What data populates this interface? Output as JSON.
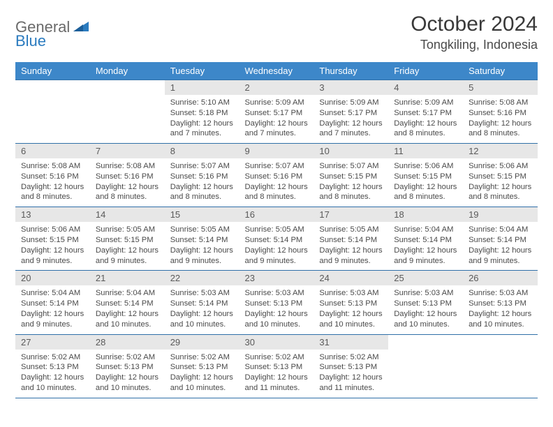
{
  "brand": {
    "word1": "General",
    "word2": "Blue"
  },
  "title": "October 2024",
  "location": "Tongkiling, Indonesia",
  "colors": {
    "header_bg": "#3d87c9",
    "header_text": "#ffffff",
    "daynum_bg": "#e7e7e7",
    "rule": "#2f6fa8",
    "text": "#4a4a4a",
    "logo_gray": "#6a6a6a",
    "logo_blue": "#2b7bbf"
  },
  "weekdays": [
    "Sunday",
    "Monday",
    "Tuesday",
    "Wednesday",
    "Thursday",
    "Friday",
    "Saturday"
  ],
  "weeks": [
    [
      null,
      null,
      {
        "n": "1",
        "sunrise": "Sunrise: 5:10 AM",
        "sunset": "Sunset: 5:18 PM",
        "day1": "Daylight: 12 hours",
        "day2": "and 7 minutes."
      },
      {
        "n": "2",
        "sunrise": "Sunrise: 5:09 AM",
        "sunset": "Sunset: 5:17 PM",
        "day1": "Daylight: 12 hours",
        "day2": "and 7 minutes."
      },
      {
        "n": "3",
        "sunrise": "Sunrise: 5:09 AM",
        "sunset": "Sunset: 5:17 PM",
        "day1": "Daylight: 12 hours",
        "day2": "and 7 minutes."
      },
      {
        "n": "4",
        "sunrise": "Sunrise: 5:09 AM",
        "sunset": "Sunset: 5:17 PM",
        "day1": "Daylight: 12 hours",
        "day2": "and 8 minutes."
      },
      {
        "n": "5",
        "sunrise": "Sunrise: 5:08 AM",
        "sunset": "Sunset: 5:16 PM",
        "day1": "Daylight: 12 hours",
        "day2": "and 8 minutes."
      }
    ],
    [
      {
        "n": "6",
        "sunrise": "Sunrise: 5:08 AM",
        "sunset": "Sunset: 5:16 PM",
        "day1": "Daylight: 12 hours",
        "day2": "and 8 minutes."
      },
      {
        "n": "7",
        "sunrise": "Sunrise: 5:08 AM",
        "sunset": "Sunset: 5:16 PM",
        "day1": "Daylight: 12 hours",
        "day2": "and 8 minutes."
      },
      {
        "n": "8",
        "sunrise": "Sunrise: 5:07 AM",
        "sunset": "Sunset: 5:16 PM",
        "day1": "Daylight: 12 hours",
        "day2": "and 8 minutes."
      },
      {
        "n": "9",
        "sunrise": "Sunrise: 5:07 AM",
        "sunset": "Sunset: 5:16 PM",
        "day1": "Daylight: 12 hours",
        "day2": "and 8 minutes."
      },
      {
        "n": "10",
        "sunrise": "Sunrise: 5:07 AM",
        "sunset": "Sunset: 5:15 PM",
        "day1": "Daylight: 12 hours",
        "day2": "and 8 minutes."
      },
      {
        "n": "11",
        "sunrise": "Sunrise: 5:06 AM",
        "sunset": "Sunset: 5:15 PM",
        "day1": "Daylight: 12 hours",
        "day2": "and 8 minutes."
      },
      {
        "n": "12",
        "sunrise": "Sunrise: 5:06 AM",
        "sunset": "Sunset: 5:15 PM",
        "day1": "Daylight: 12 hours",
        "day2": "and 8 minutes."
      }
    ],
    [
      {
        "n": "13",
        "sunrise": "Sunrise: 5:06 AM",
        "sunset": "Sunset: 5:15 PM",
        "day1": "Daylight: 12 hours",
        "day2": "and 9 minutes."
      },
      {
        "n": "14",
        "sunrise": "Sunrise: 5:05 AM",
        "sunset": "Sunset: 5:15 PM",
        "day1": "Daylight: 12 hours",
        "day2": "and 9 minutes."
      },
      {
        "n": "15",
        "sunrise": "Sunrise: 5:05 AM",
        "sunset": "Sunset: 5:14 PM",
        "day1": "Daylight: 12 hours",
        "day2": "and 9 minutes."
      },
      {
        "n": "16",
        "sunrise": "Sunrise: 5:05 AM",
        "sunset": "Sunset: 5:14 PM",
        "day1": "Daylight: 12 hours",
        "day2": "and 9 minutes."
      },
      {
        "n": "17",
        "sunrise": "Sunrise: 5:05 AM",
        "sunset": "Sunset: 5:14 PM",
        "day1": "Daylight: 12 hours",
        "day2": "and 9 minutes."
      },
      {
        "n": "18",
        "sunrise": "Sunrise: 5:04 AM",
        "sunset": "Sunset: 5:14 PM",
        "day1": "Daylight: 12 hours",
        "day2": "and 9 minutes."
      },
      {
        "n": "19",
        "sunrise": "Sunrise: 5:04 AM",
        "sunset": "Sunset: 5:14 PM",
        "day1": "Daylight: 12 hours",
        "day2": "and 9 minutes."
      }
    ],
    [
      {
        "n": "20",
        "sunrise": "Sunrise: 5:04 AM",
        "sunset": "Sunset: 5:14 PM",
        "day1": "Daylight: 12 hours",
        "day2": "and 9 minutes."
      },
      {
        "n": "21",
        "sunrise": "Sunrise: 5:04 AM",
        "sunset": "Sunset: 5:14 PM",
        "day1": "Daylight: 12 hours",
        "day2": "and 10 minutes."
      },
      {
        "n": "22",
        "sunrise": "Sunrise: 5:03 AM",
        "sunset": "Sunset: 5:14 PM",
        "day1": "Daylight: 12 hours",
        "day2": "and 10 minutes."
      },
      {
        "n": "23",
        "sunrise": "Sunrise: 5:03 AM",
        "sunset": "Sunset: 5:13 PM",
        "day1": "Daylight: 12 hours",
        "day2": "and 10 minutes."
      },
      {
        "n": "24",
        "sunrise": "Sunrise: 5:03 AM",
        "sunset": "Sunset: 5:13 PM",
        "day1": "Daylight: 12 hours",
        "day2": "and 10 minutes."
      },
      {
        "n": "25",
        "sunrise": "Sunrise: 5:03 AM",
        "sunset": "Sunset: 5:13 PM",
        "day1": "Daylight: 12 hours",
        "day2": "and 10 minutes."
      },
      {
        "n": "26",
        "sunrise": "Sunrise: 5:03 AM",
        "sunset": "Sunset: 5:13 PM",
        "day1": "Daylight: 12 hours",
        "day2": "and 10 minutes."
      }
    ],
    [
      {
        "n": "27",
        "sunrise": "Sunrise: 5:02 AM",
        "sunset": "Sunset: 5:13 PM",
        "day1": "Daylight: 12 hours",
        "day2": "and 10 minutes."
      },
      {
        "n": "28",
        "sunrise": "Sunrise: 5:02 AM",
        "sunset": "Sunset: 5:13 PM",
        "day1": "Daylight: 12 hours",
        "day2": "and 10 minutes."
      },
      {
        "n": "29",
        "sunrise": "Sunrise: 5:02 AM",
        "sunset": "Sunset: 5:13 PM",
        "day1": "Daylight: 12 hours",
        "day2": "and 10 minutes."
      },
      {
        "n": "30",
        "sunrise": "Sunrise: 5:02 AM",
        "sunset": "Sunset: 5:13 PM",
        "day1": "Daylight: 12 hours",
        "day2": "and 11 minutes."
      },
      {
        "n": "31",
        "sunrise": "Sunrise: 5:02 AM",
        "sunset": "Sunset: 5:13 PM",
        "day1": "Daylight: 12 hours",
        "day2": "and 11 minutes."
      },
      null,
      null
    ]
  ]
}
